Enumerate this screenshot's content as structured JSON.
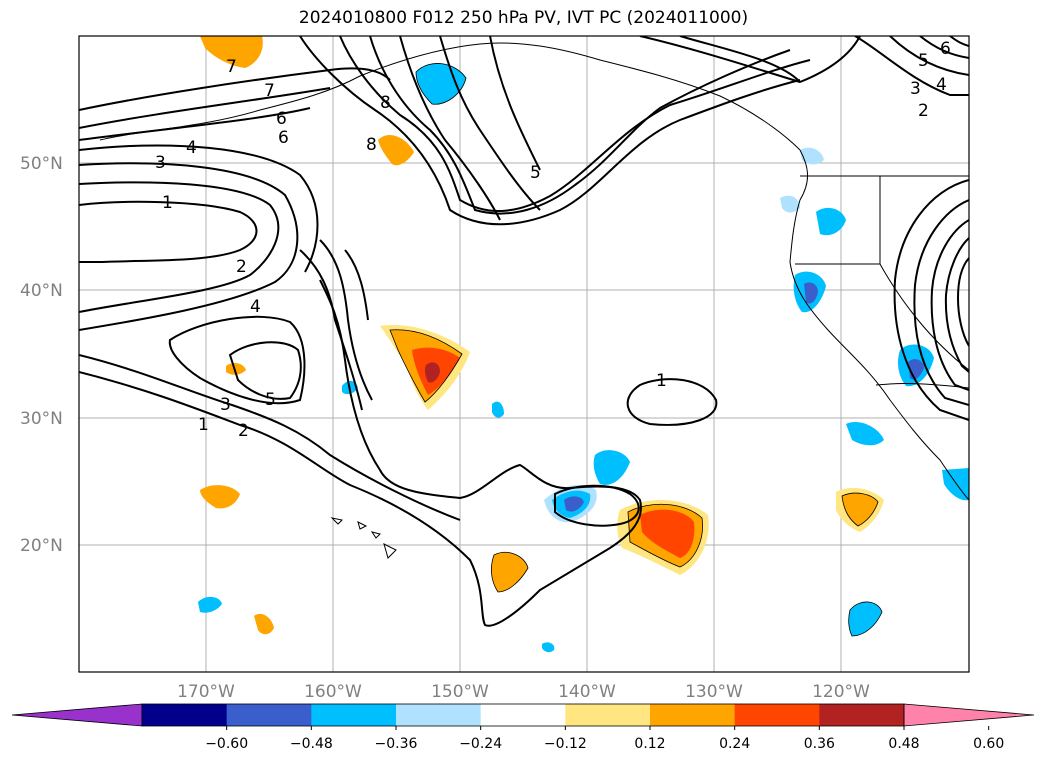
{
  "title": "2024010800 F012 250 hPa PV, IVT PC (2024011000)",
  "map": {
    "lat_labels": [
      "50°N",
      "40°N",
      "30°N",
      "20°N"
    ],
    "lon_labels": [
      "170°W",
      "160°W",
      "150°W",
      "140°W",
      "130°W",
      "120°W"
    ]
  },
  "colorbar": {
    "tick_labels": [
      "−0.60",
      "−0.48",
      "−0.36",
      "−0.24",
      "−0.12",
      "0.12",
      "0.24",
      "0.36",
      "0.48",
      "0.60"
    ],
    "colors": [
      "#9932cc",
      "#00008b",
      "#3a5fcd",
      "#00bfff",
      "#b0e2ff",
      "#ffffff",
      "#ffe680",
      "#ffa500",
      "#ff4500",
      "#b22222",
      "#ff82ab"
    ]
  },
  "contour_labels": [
    "1",
    "2",
    "3",
    "4",
    "5",
    "6",
    "7",
    "8",
    "1",
    "2",
    "3",
    "4",
    "5",
    "6",
    "7",
    "8",
    "1",
    "2",
    "3",
    "4",
    "5",
    "6"
  ]
}
